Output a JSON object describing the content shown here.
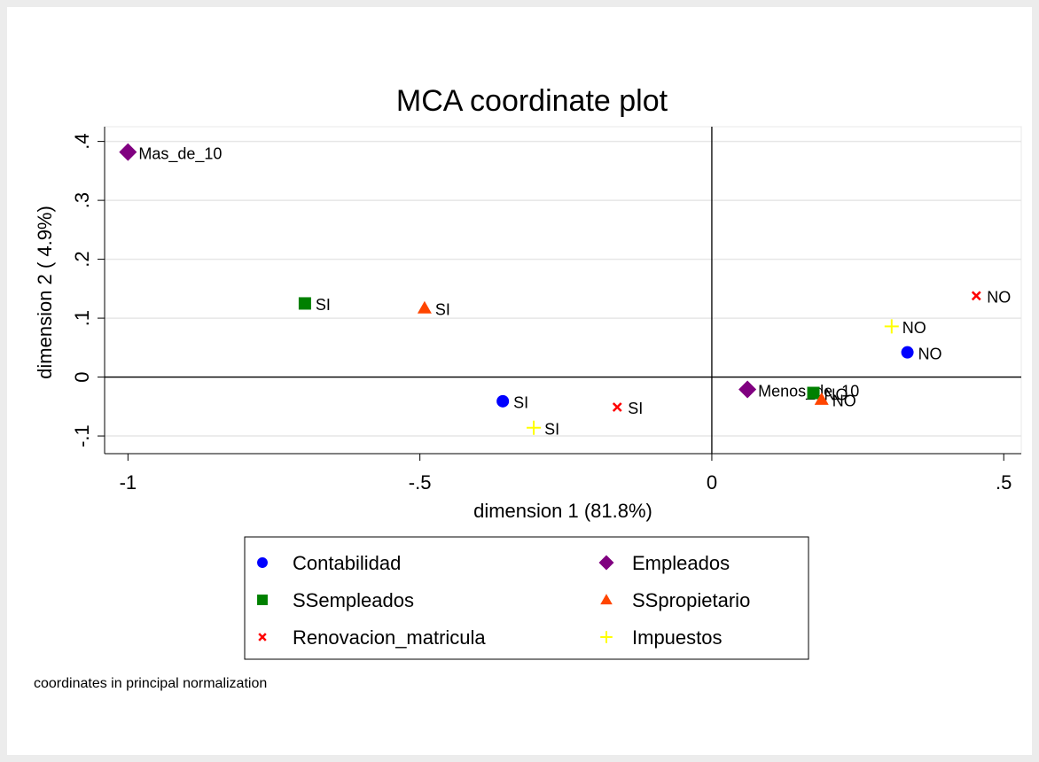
{
  "chart_data": {
    "type": "scatter",
    "title": "MCA coordinate plot",
    "xlabel": "dimension 1 (81.8%)",
    "ylabel": "dimension 2 ( 4.9%)",
    "note": "coordinates in principal normalization",
    "xlim": [
      -1.04,
      0.53
    ],
    "ylim": [
      -0.13,
      0.425
    ],
    "xticks": [
      -1,
      {
        "value": -0.5,
        "label": "-.5"
      },
      0,
      {
        "value": 0.5,
        "label": ".5"
      }
    ],
    "yticks": [
      {
        "value": -0.1,
        "label": "-.1"
      },
      0,
      {
        "value": 0.1,
        "label": ".1"
      },
      {
        "value": 0.2,
        "label": ".2"
      },
      {
        "value": 0.3,
        "label": ".3"
      },
      {
        "value": 0.4,
        "label": ".4"
      }
    ],
    "grid": true,
    "reference_lines": {
      "x": 0,
      "y": 0
    },
    "series": [
      {
        "name": "Contabilidad",
        "color": "#0000ff",
        "marker": "circle",
        "x": [
          -0.358,
          0.335
        ],
        "y": [
          -0.041,
          0.042
        ],
        "labels": [
          "SI",
          "NO"
        ]
      },
      {
        "name": "Empleados",
        "color": "#800080",
        "marker": "diamond",
        "x": [
          -1.0,
          0.061
        ],
        "y": [
          0.382,
          -0.021
        ],
        "labels": [
          "Mas_de_10",
          "Menos_de_10"
        ]
      },
      {
        "name": "SSempleados",
        "color": "#008000",
        "marker": "square",
        "x": [
          -0.697,
          0.174
        ],
        "y": [
          0.125,
          -0.027
        ],
        "labels": [
          "SI",
          "NO"
        ]
      },
      {
        "name": "SSpropietario",
        "color": "#ff4500",
        "marker": "triangle",
        "x": [
          -0.492,
          0.188
        ],
        "y": [
          0.117,
          -0.038
        ],
        "labels": [
          "SI",
          "NO"
        ]
      },
      {
        "name": "Renovacion_matricula",
        "color": "#ff0000",
        "marker": "x",
        "x": [
          -0.162,
          0.453
        ],
        "y": [
          -0.051,
          0.138
        ],
        "labels": [
          "SI",
          "NO"
        ]
      },
      {
        "name": "Impuestos",
        "color": "#ffff00",
        "marker": "plus",
        "x": [
          -0.305,
          0.308
        ],
        "y": [
          -0.086,
          0.086
        ],
        "labels": [
          "SI",
          "NO"
        ]
      }
    ]
  }
}
